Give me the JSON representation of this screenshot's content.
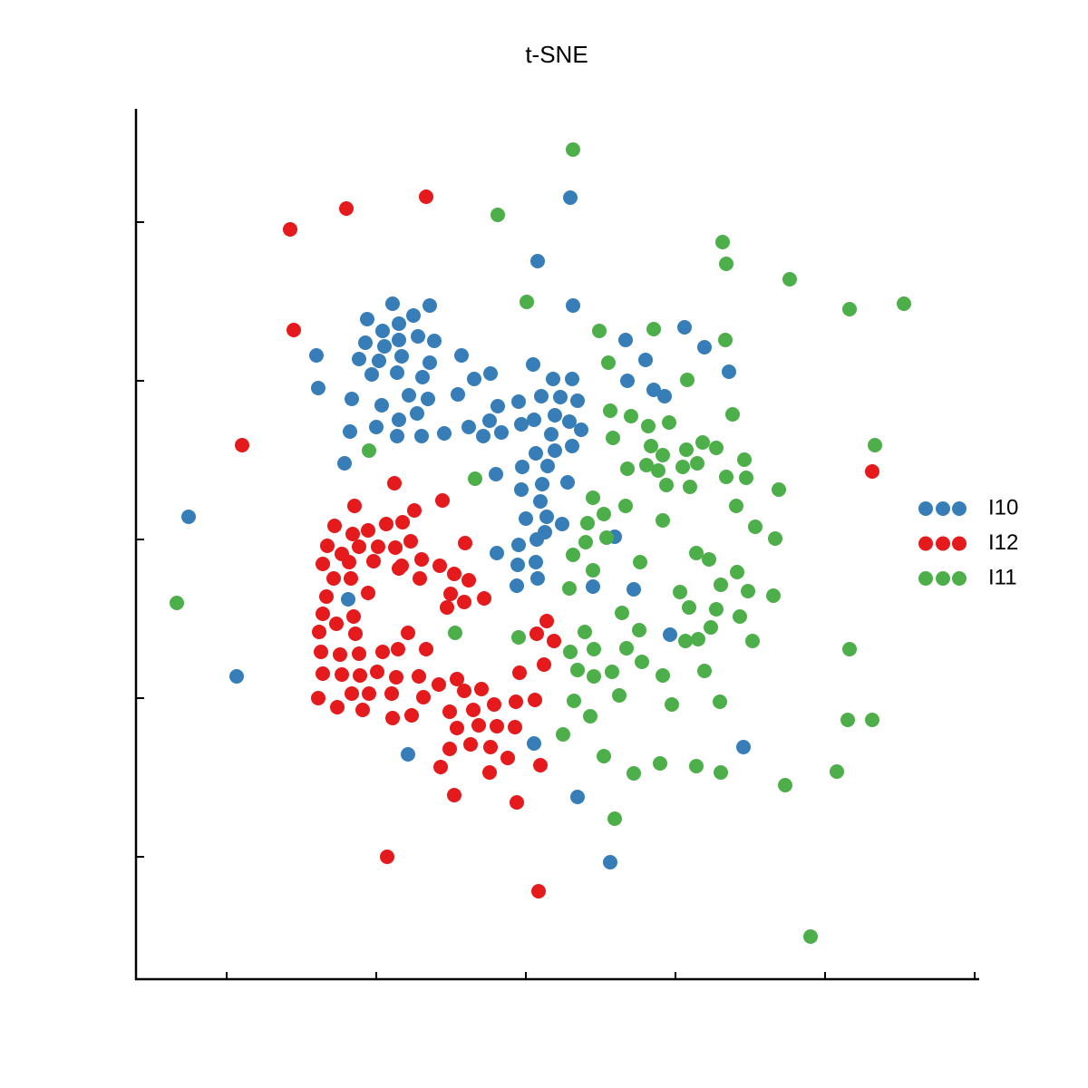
{
  "chart_data": {
    "type": "scatter",
    "title": "t-SNE",
    "xlim": [
      150,
      1080
    ],
    "ylim": [
      120,
      1080
    ],
    "xticks": [
      250,
      415,
      580,
      745,
      910,
      1075
    ],
    "yticks": [
      255,
      430,
      605,
      780,
      955
    ],
    "legend": "right",
    "series": [
      {
        "name": "I10",
        "color": "#377eb8",
        "x": [
          629,
          593,
          632,
          433,
          474,
          405,
          440,
          456,
          422,
          440,
          461,
          479,
          349,
          403,
          424,
          396,
          418,
          443,
          474,
          509,
          410,
          438,
          466,
          523,
          541,
          588,
          610,
          631,
          351,
          388,
          421,
          451,
          472,
          440,
          460,
          415,
          438,
          465,
          386,
          505,
          490,
          517,
          533,
          540,
          549,
          553,
          572,
          575,
          589,
          597,
          618,
          637,
          612,
          628,
          641,
          608,
          591,
          612,
          631,
          380,
          547,
          576,
          604,
          598,
          626,
          575,
          596,
          580,
          603,
          620,
          601,
          548,
          572,
          592,
          571,
          591,
          593,
          570,
          654,
          678,
          699,
          739,
          690,
          755,
          777,
          712,
          692,
          804,
          721,
          733,
          208,
          384,
          261,
          450,
          589,
          637,
          673,
          820
        ],
        "values": [
          982,
          912,
          863,
          865,
          863,
          848,
          843,
          852,
          835,
          825,
          829,
          824,
          808,
          822,
          818,
          804,
          802,
          807,
          800,
          808,
          787,
          789,
          784,
          782,
          788,
          798,
          782,
          782,
          772,
          760,
          753,
          764,
          760,
          737,
          744,
          729,
          719,
          719,
          724,
          765,
          722,
          729,
          719,
          736,
          752,
          723,
          757,
          732,
          737,
          763,
          762,
          758,
          742,
          735,
          726,
          721,
          700,
          703,
          708,
          689,
          677,
          685,
          686,
          666,
          668,
          660,
          647,
          628,
          630,
          622,
          613,
          590,
          599,
          605,
          577,
          580,
          562,
          554,
          553,
          608,
          550,
          500,
          825,
          839,
          817,
          803,
          780,
          790,
          770,
          763,
          630,
          539,
          454,
          368,
          380,
          321,
          249,
          376
        ]
      },
      {
        "name": "I12",
        "color": "#e41a1c",
        "x": [
          320,
          382,
          470,
          324,
          267,
          962,
          435,
          488,
          391,
          369,
          389,
          406,
          426,
          444,
          457,
          361,
          377,
          396,
          417,
          436,
          453,
          513,
          356,
          385,
          412,
          443,
          465,
          485,
          501,
          368,
          387,
          440,
          463,
          497,
          517,
          534,
          360,
          406,
          512,
          493,
          356,
          352,
          371,
          390,
          392,
          450,
          603,
          592,
          611,
          354,
          375,
          396,
          422,
          439,
          470,
          356,
          377,
          397,
          416,
          437,
          462,
          484,
          504,
          531,
          573,
          600,
          351,
          372,
          388,
          407,
          432,
          467,
          512,
          545,
          569,
          590,
          400,
          433,
          454,
          496,
          522,
          504,
          528,
          548,
          568,
          496,
          519,
          541,
          560,
          486,
          540,
          596,
          501,
          570,
          427,
          594
        ],
        "values": [
          947,
          970,
          983,
          836,
          709,
          680,
          667,
          648,
          642,
          620,
          611,
          615,
          622,
          624,
          637,
          598,
          589,
          597,
          597,
          596,
          603,
          601,
          578,
          580,
          581,
          576,
          583,
          576,
          567,
          562,
          562,
          573,
          562,
          545,
          560,
          540,
          542,
          546,
          536,
          530,
          523,
          503,
          512,
          520,
          501,
          502,
          515,
          501,
          493,
          481,
          478,
          479,
          481,
          484,
          484,
          457,
          456,
          455,
          459,
          453,
          454,
          445,
          451,
          440,
          458,
          467,
          430,
          420,
          435,
          435,
          435,
          431,
          438,
          423,
          426,
          428,
          417,
          408,
          411,
          415,
          417,
          397,
          400,
          399,
          398,
          374,
          379,
          376,
          364,
          354,
          348,
          356,
          323,
          315,
          255,
          217
        ]
      },
      {
        "name": "I11",
        "color": "#4daf4a",
        "x": [
          632,
          549,
          581,
          797,
          801,
          871,
          937,
          997,
          661,
          721,
          800,
          671,
          758,
          808,
          673,
          696,
          715,
          738,
          676,
          718,
          731,
          757,
          775,
          790,
          821,
          407,
          524,
          692,
          713,
          726,
          753,
          769,
          801,
          823,
          735,
          761,
          859,
          965,
          654,
          690,
          648,
          666,
          731,
          812,
          833,
          855,
          646,
          669,
          632,
          654,
          706,
          768,
          782,
          628,
          795,
          813,
          825,
          853,
          750,
          760,
          790,
          686,
          816,
          195,
          502,
          572,
          645,
          705,
          784,
          629,
          655,
          691,
          756,
          770,
          830,
          937,
          708,
          637,
          655,
          675,
          731,
          777,
          633,
          683,
          741,
          794,
          651,
          621,
          666,
          699,
          728,
          768,
          795,
          866,
          923,
          935,
          962,
          678,
          894
        ],
        "values": [
          1035,
          963,
          867,
          933,
          909,
          892,
          859,
          865,
          835,
          837,
          825,
          800,
          781,
          743,
          747,
          741,
          730,
          734,
          717,
          708,
          698,
          704,
          712,
          706,
          693,
          703,
          672,
          683,
          687,
          681,
          685,
          689,
          674,
          673,
          665,
          663,
          660,
          709,
          651,
          642,
          623,
          633,
          626,
          642,
          619,
          606,
          602,
          607,
          588,
          571,
          580,
          590,
          583,
          551,
          555,
          569,
          548,
          543,
          547,
          530,
          528,
          524,
          520,
          535,
          502,
          497,
          503,
          505,
          508,
          481,
          484,
          485,
          493,
          495,
          493,
          484,
          470,
          461,
          454,
          459,
          455,
          460,
          427,
          433,
          423,
          426,
          410,
          390,
          366,
          347,
          358,
          355,
          348,
          334,
          349,
          406,
          406,
          297,
          167
        ]
      }
    ]
  }
}
